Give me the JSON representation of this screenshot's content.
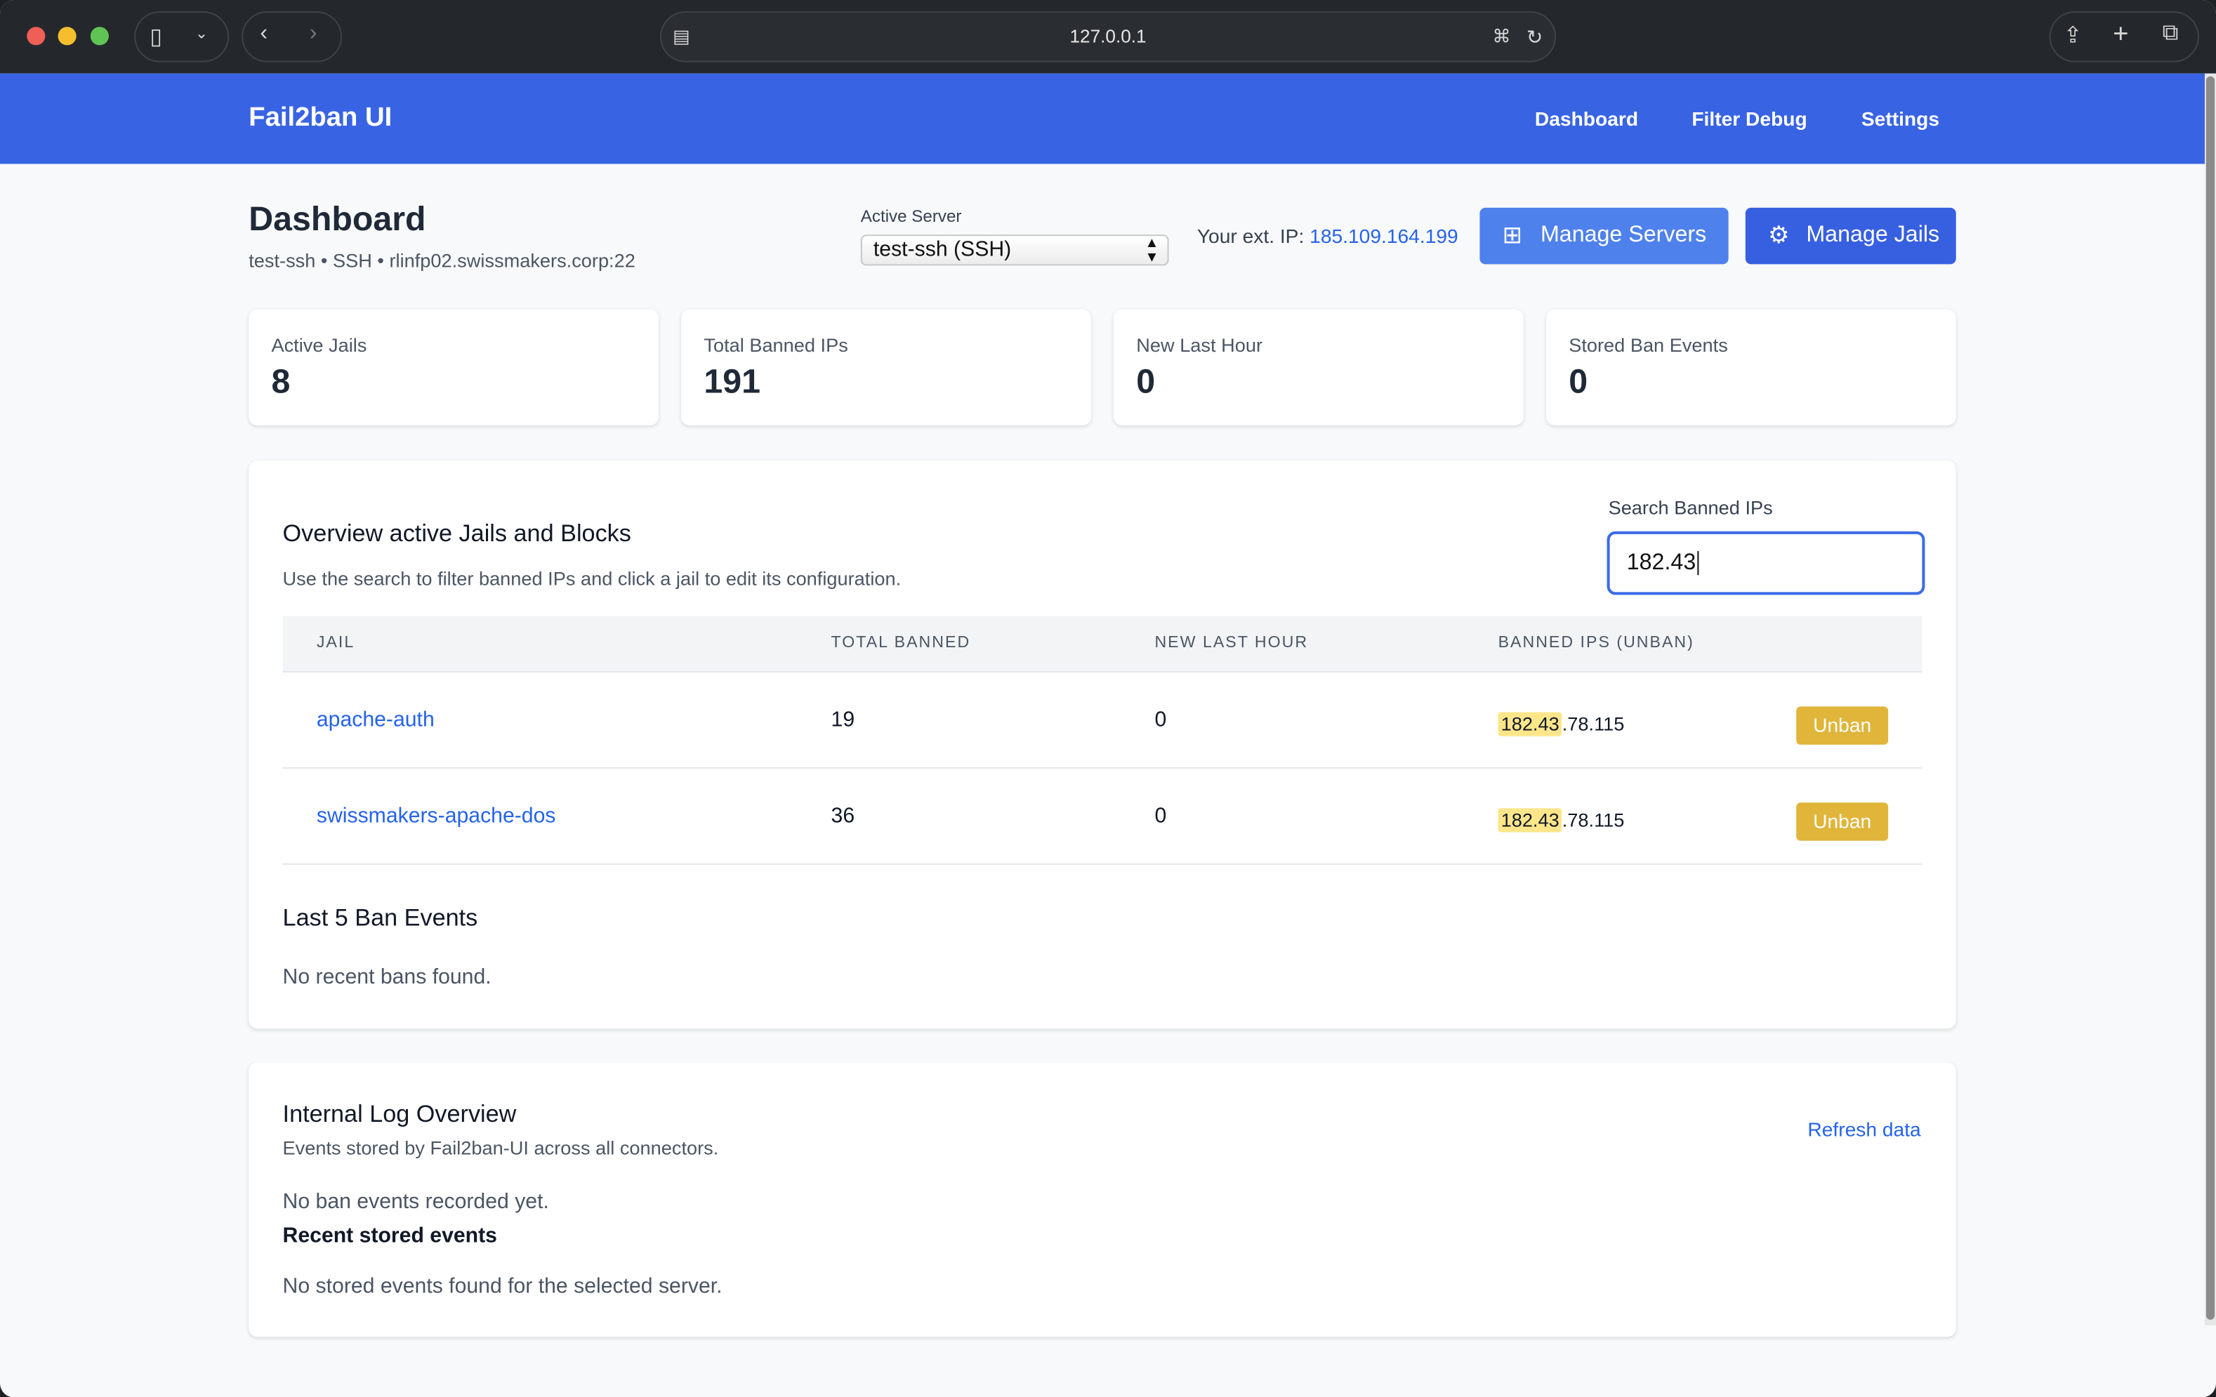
{
  "browser": {
    "url": "127.0.0.1"
  },
  "nav": {
    "brand": "Fail2ban UI",
    "links": [
      "Dashboard",
      "Filter Debug",
      "Settings"
    ]
  },
  "header": {
    "title": "Dashboard",
    "subtitle": "test-ssh • SSH • rlinfp02.swissmakers.corp:22",
    "active_server_label": "Active Server",
    "active_server_value": "test-ssh (SSH)",
    "ext_ip_label": "Your ext. IP:",
    "ext_ip": "185.109.164.199",
    "manage_servers": "Manage Servers",
    "manage_jails": "Manage Jails"
  },
  "colors": {
    "brand": "#3864e4",
    "link": "#2563eb",
    "unban": "#e0b53a",
    "highlight": "#fde68a"
  },
  "stats": [
    {
      "label": "Active Jails",
      "value": "8"
    },
    {
      "label": "Total Banned IPs",
      "value": "191"
    },
    {
      "label": "New Last Hour",
      "value": "0"
    },
    {
      "label": "Stored Ban Events",
      "value": "0"
    }
  ],
  "overview": {
    "title": "Overview active Jails and Blocks",
    "description": "Use the search to filter banned IPs and click a jail to edit its configuration.",
    "search_label": "Search Banned IPs",
    "search_value": "182.43",
    "columns": [
      "JAIL",
      "TOTAL BANNED",
      "NEW LAST HOUR",
      "BANNED IPS (UNBAN)"
    ],
    "rows": [
      {
        "jail": "apache-auth",
        "total": "19",
        "new": "0",
        "ip_match": "182.43",
        "ip_rest": ".78.115",
        "action": "Unban"
      },
      {
        "jail": "swissmakers-apache-dos",
        "total": "36",
        "new": "0",
        "ip_match": "182.43",
        "ip_rest": ".78.115",
        "action": "Unban"
      }
    ],
    "last_events_title": "Last 5 Ban Events",
    "last_events_empty": "No recent bans found."
  },
  "log": {
    "title": "Internal Log Overview",
    "description": "Events stored by Fail2ban-UI across all connectors.",
    "refresh": "Refresh data",
    "no_events": "No ban events recorded yet.",
    "recent_title": "Recent stored events",
    "recent_empty": "No stored events found for the selected server."
  }
}
